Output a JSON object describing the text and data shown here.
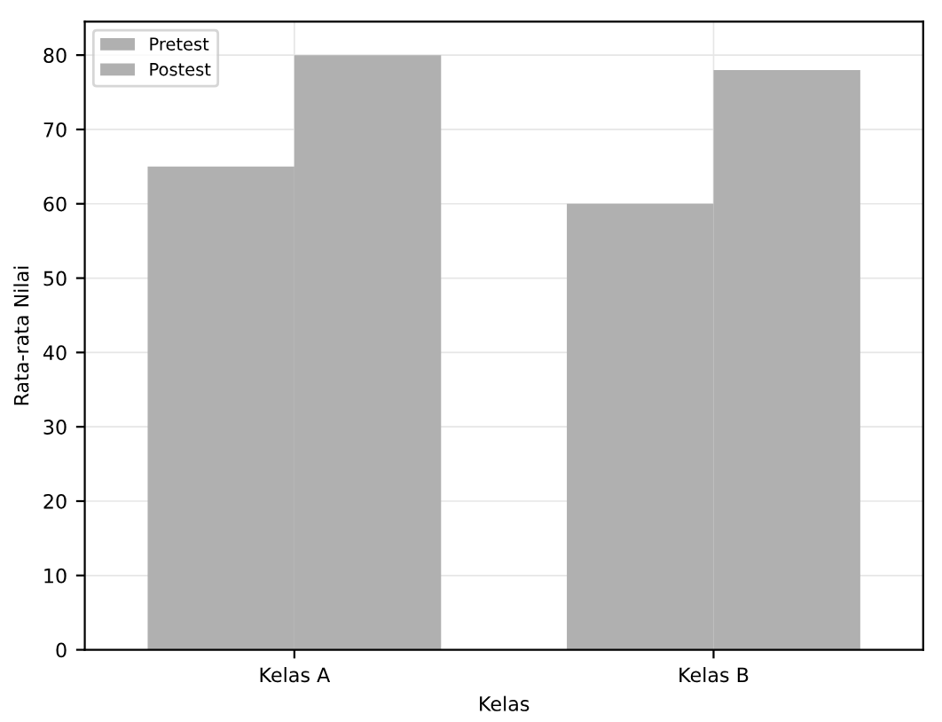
{
  "chart_data": {
    "type": "bar",
    "xlabel": "Kelas",
    "ylabel": "Rata-rata Nilai",
    "categories": [
      "Kelas A",
      "Kelas B"
    ],
    "series": [
      {
        "name": "Pretest",
        "color": "#b0b0b0",
        "values": [
          65,
          60
        ]
      },
      {
        "name": "Postest",
        "color": "#b0b0b0",
        "values": [
          80,
          78
        ]
      }
    ],
    "ylim": [
      0,
      84.5
    ],
    "yticks": [
      0,
      10,
      20,
      30,
      40,
      50,
      60,
      70,
      80
    ],
    "grid": true,
    "legend": "top left"
  }
}
